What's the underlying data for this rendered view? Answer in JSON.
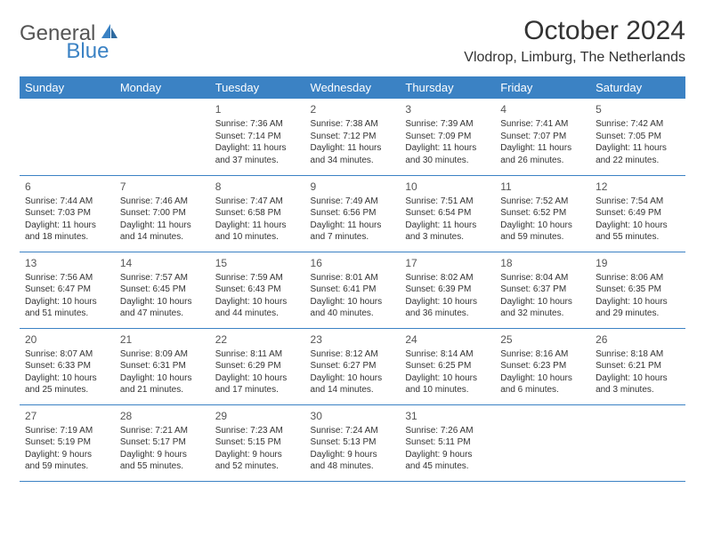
{
  "logo": {
    "text1": "General",
    "text2": "Blue"
  },
  "title": "October 2024",
  "location": "Vlodrop, Limburg, The Netherlands",
  "colors": {
    "header_bg": "#3b82c4",
    "header_fg": "#ffffff",
    "border": "#3b82c4",
    "text": "#333333",
    "logo_gray": "#555555",
    "logo_blue": "#3b82c4"
  },
  "day_headers": [
    "Sunday",
    "Monday",
    "Tuesday",
    "Wednesday",
    "Thursday",
    "Friday",
    "Saturday"
  ],
  "weeks": [
    [
      null,
      null,
      {
        "n": "1",
        "sr": "Sunrise: 7:36 AM",
        "ss": "Sunset: 7:14 PM",
        "d1": "Daylight: 11 hours",
        "d2": "and 37 minutes."
      },
      {
        "n": "2",
        "sr": "Sunrise: 7:38 AM",
        "ss": "Sunset: 7:12 PM",
        "d1": "Daylight: 11 hours",
        "d2": "and 34 minutes."
      },
      {
        "n": "3",
        "sr": "Sunrise: 7:39 AM",
        "ss": "Sunset: 7:09 PM",
        "d1": "Daylight: 11 hours",
        "d2": "and 30 minutes."
      },
      {
        "n": "4",
        "sr": "Sunrise: 7:41 AM",
        "ss": "Sunset: 7:07 PM",
        "d1": "Daylight: 11 hours",
        "d2": "and 26 minutes."
      },
      {
        "n": "5",
        "sr": "Sunrise: 7:42 AM",
        "ss": "Sunset: 7:05 PM",
        "d1": "Daylight: 11 hours",
        "d2": "and 22 minutes."
      }
    ],
    [
      {
        "n": "6",
        "sr": "Sunrise: 7:44 AM",
        "ss": "Sunset: 7:03 PM",
        "d1": "Daylight: 11 hours",
        "d2": "and 18 minutes."
      },
      {
        "n": "7",
        "sr": "Sunrise: 7:46 AM",
        "ss": "Sunset: 7:00 PM",
        "d1": "Daylight: 11 hours",
        "d2": "and 14 minutes."
      },
      {
        "n": "8",
        "sr": "Sunrise: 7:47 AM",
        "ss": "Sunset: 6:58 PM",
        "d1": "Daylight: 11 hours",
        "d2": "and 10 minutes."
      },
      {
        "n": "9",
        "sr": "Sunrise: 7:49 AM",
        "ss": "Sunset: 6:56 PM",
        "d1": "Daylight: 11 hours",
        "d2": "and 7 minutes."
      },
      {
        "n": "10",
        "sr": "Sunrise: 7:51 AM",
        "ss": "Sunset: 6:54 PM",
        "d1": "Daylight: 11 hours",
        "d2": "and 3 minutes."
      },
      {
        "n": "11",
        "sr": "Sunrise: 7:52 AM",
        "ss": "Sunset: 6:52 PM",
        "d1": "Daylight: 10 hours",
        "d2": "and 59 minutes."
      },
      {
        "n": "12",
        "sr": "Sunrise: 7:54 AM",
        "ss": "Sunset: 6:49 PM",
        "d1": "Daylight: 10 hours",
        "d2": "and 55 minutes."
      }
    ],
    [
      {
        "n": "13",
        "sr": "Sunrise: 7:56 AM",
        "ss": "Sunset: 6:47 PM",
        "d1": "Daylight: 10 hours",
        "d2": "and 51 minutes."
      },
      {
        "n": "14",
        "sr": "Sunrise: 7:57 AM",
        "ss": "Sunset: 6:45 PM",
        "d1": "Daylight: 10 hours",
        "d2": "and 47 minutes."
      },
      {
        "n": "15",
        "sr": "Sunrise: 7:59 AM",
        "ss": "Sunset: 6:43 PM",
        "d1": "Daylight: 10 hours",
        "d2": "and 44 minutes."
      },
      {
        "n": "16",
        "sr": "Sunrise: 8:01 AM",
        "ss": "Sunset: 6:41 PM",
        "d1": "Daylight: 10 hours",
        "d2": "and 40 minutes."
      },
      {
        "n": "17",
        "sr": "Sunrise: 8:02 AM",
        "ss": "Sunset: 6:39 PM",
        "d1": "Daylight: 10 hours",
        "d2": "and 36 minutes."
      },
      {
        "n": "18",
        "sr": "Sunrise: 8:04 AM",
        "ss": "Sunset: 6:37 PM",
        "d1": "Daylight: 10 hours",
        "d2": "and 32 minutes."
      },
      {
        "n": "19",
        "sr": "Sunrise: 8:06 AM",
        "ss": "Sunset: 6:35 PM",
        "d1": "Daylight: 10 hours",
        "d2": "and 29 minutes."
      }
    ],
    [
      {
        "n": "20",
        "sr": "Sunrise: 8:07 AM",
        "ss": "Sunset: 6:33 PM",
        "d1": "Daylight: 10 hours",
        "d2": "and 25 minutes."
      },
      {
        "n": "21",
        "sr": "Sunrise: 8:09 AM",
        "ss": "Sunset: 6:31 PM",
        "d1": "Daylight: 10 hours",
        "d2": "and 21 minutes."
      },
      {
        "n": "22",
        "sr": "Sunrise: 8:11 AM",
        "ss": "Sunset: 6:29 PM",
        "d1": "Daylight: 10 hours",
        "d2": "and 17 minutes."
      },
      {
        "n": "23",
        "sr": "Sunrise: 8:12 AM",
        "ss": "Sunset: 6:27 PM",
        "d1": "Daylight: 10 hours",
        "d2": "and 14 minutes."
      },
      {
        "n": "24",
        "sr": "Sunrise: 8:14 AM",
        "ss": "Sunset: 6:25 PM",
        "d1": "Daylight: 10 hours",
        "d2": "and 10 minutes."
      },
      {
        "n": "25",
        "sr": "Sunrise: 8:16 AM",
        "ss": "Sunset: 6:23 PM",
        "d1": "Daylight: 10 hours",
        "d2": "and 6 minutes."
      },
      {
        "n": "26",
        "sr": "Sunrise: 8:18 AM",
        "ss": "Sunset: 6:21 PM",
        "d1": "Daylight: 10 hours",
        "d2": "and 3 minutes."
      }
    ],
    [
      {
        "n": "27",
        "sr": "Sunrise: 7:19 AM",
        "ss": "Sunset: 5:19 PM",
        "d1": "Daylight: 9 hours",
        "d2": "and 59 minutes."
      },
      {
        "n": "28",
        "sr": "Sunrise: 7:21 AM",
        "ss": "Sunset: 5:17 PM",
        "d1": "Daylight: 9 hours",
        "d2": "and 55 minutes."
      },
      {
        "n": "29",
        "sr": "Sunrise: 7:23 AM",
        "ss": "Sunset: 5:15 PM",
        "d1": "Daylight: 9 hours",
        "d2": "and 52 minutes."
      },
      {
        "n": "30",
        "sr": "Sunrise: 7:24 AM",
        "ss": "Sunset: 5:13 PM",
        "d1": "Daylight: 9 hours",
        "d2": "and 48 minutes."
      },
      {
        "n": "31",
        "sr": "Sunrise: 7:26 AM",
        "ss": "Sunset: 5:11 PM",
        "d1": "Daylight: 9 hours",
        "d2": "and 45 minutes."
      },
      null,
      null
    ]
  ]
}
